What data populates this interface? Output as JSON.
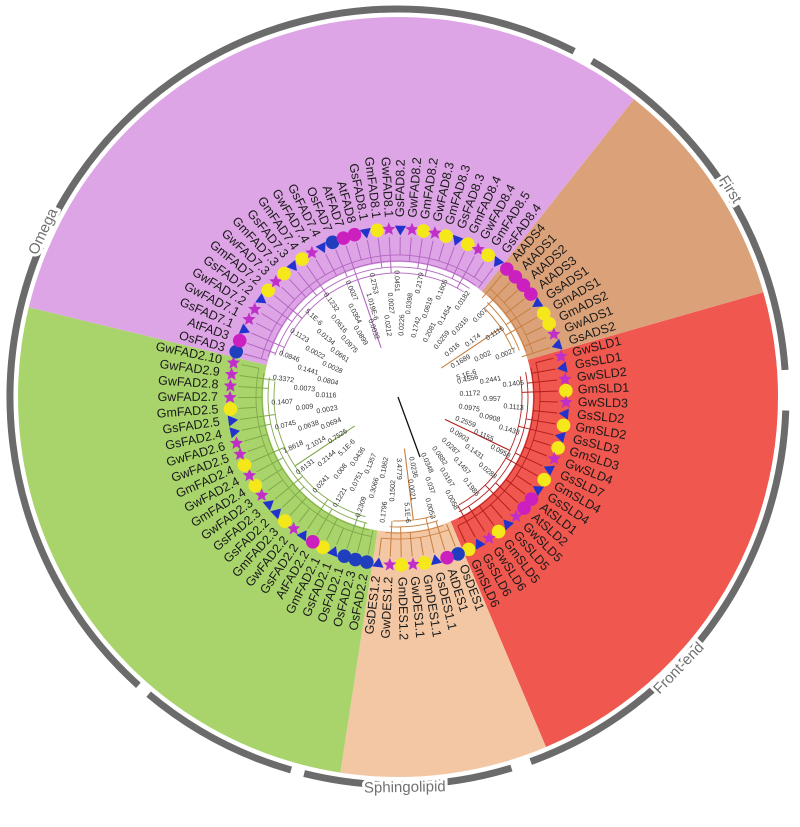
{
  "colors": {
    "outer_ring": "#6b6b6b",
    "marker_circle_magenta": "#cc1fbf",
    "marker_circle_yellow": "#f5e81a",
    "marker_circle_blue": "#1f3fbf",
    "marker_triangle_blue": "#2233cc",
    "marker_star_magenta": "#c030c8",
    "root_stroke": "#111111"
  },
  "clades": [
    {
      "name": "Omega",
      "label": "Omega",
      "color": "#dea5e6",
      "branch": "#b366c2"
    },
    {
      "name": "First",
      "label": "First",
      "color": "#dba27a",
      "branch": "#c77f40"
    },
    {
      "name": "Front-end",
      "label": "Front-end",
      "color": "#f0574e",
      "branch": "#b31f1f"
    },
    {
      "name": "Sphingolipid",
      "label": "Sphingolipid",
      "color": "#f3c7a3",
      "branch": "#c77f40"
    },
    {
      "name": "Delta-12",
      "label": "",
      "color": "#a9d46c",
      "branch": "#7faa4a"
    }
  ],
  "leaves": [
    {
      "label": "GwSLD1",
      "marker": "star",
      "clade": "Front-end"
    },
    {
      "label": "GsSLD1",
      "marker": "triangle",
      "clade": "Front-end"
    },
    {
      "label": "GwSLD2",
      "marker": "star",
      "clade": "Front-end"
    },
    {
      "label": "GmSLD1",
      "marker": "circle-yellow",
      "clade": "Front-end"
    },
    {
      "label": "GwSLD3",
      "marker": "star",
      "clade": "Front-end"
    },
    {
      "label": "GsSLD2",
      "marker": "triangle",
      "clade": "Front-end"
    },
    {
      "label": "GmSLD2",
      "marker": "circle-yellow",
      "clade": "Front-end"
    },
    {
      "label": "GsSLD3",
      "marker": "triangle",
      "clade": "Front-end"
    },
    {
      "label": "GmSLD3",
      "marker": "circle-yellow",
      "clade": "Front-end"
    },
    {
      "label": "GwSLD4",
      "marker": "star",
      "clade": "Front-end"
    },
    {
      "label": "GsSLD7",
      "marker": "triangle",
      "clade": "Front-end"
    },
    {
      "label": "GmSLD4",
      "marker": "circle-yellow",
      "clade": "Front-end"
    },
    {
      "label": "GsSLD4",
      "marker": "triangle",
      "clade": "Front-end"
    },
    {
      "label": "AtSLD1",
      "marker": "circle-magenta",
      "clade": "Front-end"
    },
    {
      "label": "AtSLD2",
      "marker": "circle-magenta",
      "clade": "Front-end"
    },
    {
      "label": "GwSLD5",
      "marker": "star",
      "clade": "Front-end"
    },
    {
      "label": "GsSLD5",
      "marker": "triangle",
      "clade": "Front-end"
    },
    {
      "label": "GmSLD5",
      "marker": "circle-yellow",
      "clade": "Front-end"
    },
    {
      "label": "GwSLD6",
      "marker": "star",
      "clade": "Front-end"
    },
    {
      "label": "GsSLD6",
      "marker": "triangle",
      "clade": "Front-end"
    },
    {
      "label": "GmSLD6",
      "marker": "circle-yellow",
      "clade": "Front-end"
    },
    {
      "label": "OsDES1",
      "marker": "circle-blue",
      "clade": "Sphingolipid"
    },
    {
      "label": "AtDES1",
      "marker": "circle-magenta",
      "clade": "Sphingolipid"
    },
    {
      "label": "GsDES1.1",
      "marker": "triangle",
      "clade": "Sphingolipid"
    },
    {
      "label": "GmDES1.1",
      "marker": "circle-yellow",
      "clade": "Sphingolipid"
    },
    {
      "label": "GwDES1.1",
      "marker": "star",
      "clade": "Sphingolipid"
    },
    {
      "label": "GmDES1.2",
      "marker": "circle-yellow",
      "clade": "Sphingolipid"
    },
    {
      "label": "GwDES1.2",
      "marker": "star",
      "clade": "Sphingolipid"
    },
    {
      "label": "GsDES1.2",
      "marker": "triangle",
      "clade": "Sphingolipid"
    },
    {
      "label": "OsFAD2.2",
      "marker": "circle-blue",
      "clade": "Delta-12"
    },
    {
      "label": "OsFAD2.3",
      "marker": "circle-blue",
      "clade": "Delta-12"
    },
    {
      "label": "OsFAD2.1",
      "marker": "circle-blue",
      "clade": "Delta-12"
    },
    {
      "label": "GsFAD2.1",
      "marker": "triangle",
      "clade": "Delta-12"
    },
    {
      "label": "GmFAD2.1",
      "marker": "circle-yellow",
      "clade": "Delta-12"
    },
    {
      "label": "AtFAD2.2",
      "marker": "circle-magenta",
      "clade": "Delta-12"
    },
    {
      "label": "GsFAD2.2",
      "marker": "triangle",
      "clade": "Delta-12"
    },
    {
      "label": "GwFAD2.2",
      "marker": "star",
      "clade": "Delta-12"
    },
    {
      "label": "GmFAD2.3",
      "marker": "circle-yellow",
      "clade": "Delta-12"
    },
    {
      "label": "GsFAD2.2",
      "marker": "triangle",
      "clade": "Delta-12"
    },
    {
      "label": "GsFAD2.3",
      "marker": "triangle",
      "clade": "Delta-12"
    },
    {
      "label": "GwFAD2.3",
      "marker": "star",
      "clade": "Delta-12"
    },
    {
      "label": "GmFAD2.4",
      "marker": "circle-yellow",
      "clade": "Delta-12"
    },
    {
      "label": "GwFAD2.4",
      "marker": "star",
      "clade": "Delta-12"
    },
    {
      "label": "GmFAD2.4",
      "marker": "circle-yellow",
      "clade": "Delta-12"
    },
    {
      "label": "GwFAD2.5",
      "marker": "star",
      "clade": "Delta-12"
    },
    {
      "label": "GwFAD2.6",
      "marker": "star",
      "clade": "Delta-12"
    },
    {
      "label": "GsFAD2.4",
      "marker": "triangle",
      "clade": "Delta-12"
    },
    {
      "label": "GsFAD2.5",
      "marker": "triangle",
      "clade": "Delta-12"
    },
    {
      "label": "GmFAD2.5",
      "marker": "circle-yellow",
      "clade": "Delta-12"
    },
    {
      "label": "GwFAD2.7",
      "marker": "star",
      "clade": "Delta-12"
    },
    {
      "label": "GwFAD2.8",
      "marker": "star",
      "clade": "Delta-12"
    },
    {
      "label": "GwFAD2.9",
      "marker": "star",
      "clade": "Delta-12"
    },
    {
      "label": "GwFAD2.10",
      "marker": "star",
      "clade": "Delta-12"
    },
    {
      "label": "OsFAD3",
      "marker": "circle-blue",
      "clade": "Omega"
    },
    {
      "label": "AtFAD3",
      "marker": "circle-magenta",
      "clade": "Omega"
    },
    {
      "label": "GsFAD7.1",
      "marker": "triangle",
      "clade": "Omega"
    },
    {
      "label": "GwFAD7.1",
      "marker": "star",
      "clade": "Omega"
    },
    {
      "label": "GwFAD7.2",
      "marker": "star",
      "clade": "Omega"
    },
    {
      "label": "GsFAD7.2",
      "marker": "triangle",
      "clade": "Omega"
    },
    {
      "label": "GmFAD7.2",
      "marker": "circle-yellow",
      "clade": "Omega"
    },
    {
      "label": "GwFAD7.3",
      "marker": "star",
      "clade": "Omega"
    },
    {
      "label": "GmFAD7.3",
      "marker": "circle-yellow",
      "clade": "Omega"
    },
    {
      "label": "GsFAD7.3",
      "marker": "triangle",
      "clade": "Omega"
    },
    {
      "label": "GmFAD7.4",
      "marker": "circle-yellow",
      "clade": "Omega"
    },
    {
      "label": "GwFAD7.4",
      "marker": "star",
      "clade": "Omega"
    },
    {
      "label": "GsFAD7.4",
      "marker": "triangle",
      "clade": "Omega"
    },
    {
      "label": "OsFAD7",
      "marker": "circle-blue",
      "clade": "Omega"
    },
    {
      "label": "AtFAD7",
      "marker": "circle-magenta",
      "clade": "Omega"
    },
    {
      "label": "AtFAD8",
      "marker": "circle-magenta",
      "clade": "Omega"
    },
    {
      "label": "GsFAD8.1",
      "marker": "triangle",
      "clade": "Omega"
    },
    {
      "label": "GmFAD8.1",
      "marker": "circle-yellow",
      "clade": "Omega"
    },
    {
      "label": "GwFAD8.1",
      "marker": "star",
      "clade": "Omega"
    },
    {
      "label": "GsFAD8.2",
      "marker": "triangle",
      "clade": "Omega"
    },
    {
      "label": "GwFAD8.2",
      "marker": "star",
      "clade": "Omega"
    },
    {
      "label": "GmFAD8.2",
      "marker": "circle-yellow",
      "clade": "Omega"
    },
    {
      "label": "GwFAD8.3",
      "marker": "star",
      "clade": "Omega"
    },
    {
      "label": "GmFAD8.3",
      "marker": "circle-yellow",
      "clade": "Omega"
    },
    {
      "label": "GsFAD8.3",
      "marker": "triangle",
      "clade": "Omega"
    },
    {
      "label": "GmFAD8.4",
      "marker": "circle-yellow",
      "clade": "Omega"
    },
    {
      "label": "GwFAD8.4",
      "marker": "star",
      "clade": "Omega"
    },
    {
      "label": "GmFAD8.5",
      "marker": "circle-yellow",
      "clade": "Omega"
    },
    {
      "label": "GsFAD8.4",
      "marker": "triangle",
      "clade": "Omega"
    },
    {
      "label": "AtADS4",
      "marker": "circle-magenta",
      "clade": "First"
    },
    {
      "label": "AtADS1",
      "marker": "circle-magenta",
      "clade": "First"
    },
    {
      "label": "AtADS2",
      "marker": "circle-magenta",
      "clade": "First"
    },
    {
      "label": "AtADS3",
      "marker": "circle-magenta",
      "clade": "First"
    },
    {
      "label": "GsADS1",
      "marker": "triangle",
      "clade": "First"
    },
    {
      "label": "GmADS1",
      "marker": "circle-yellow",
      "clade": "First"
    },
    {
      "label": "GmADS2",
      "marker": "circle-yellow",
      "clade": "First"
    },
    {
      "label": "GwADS1",
      "marker": "star",
      "clade": "First"
    },
    {
      "label": "GsADS2",
      "marker": "triangle",
      "clade": "First"
    }
  ],
  "branch_labels": [
    {
      "text": "0.4556",
      "clade": "Delta-12"
    },
    {
      "text": "0.2441",
      "clade": "Omega"
    },
    {
      "text": "0.1405",
      "clade": "Omega"
    },
    {
      "text": "0.1172",
      "clade": "Omega"
    },
    {
      "text": "0.957",
      "clade": "Omega"
    },
    {
      "text": "0.1113",
      "clade": "Omega"
    },
    {
      "text": "0.0975",
      "clade": "Omega"
    },
    {
      "text": "0.0908",
      "clade": "Omega"
    },
    {
      "text": "0.1433",
      "clade": "Omega"
    },
    {
      "text": "0.2559",
      "clade": "Omega"
    },
    {
      "text": "0.1155",
      "clade": "Omega"
    },
    {
      "text": "0.0958",
      "clade": "Omega"
    },
    {
      "text": "0.0903",
      "clade": "Omega"
    },
    {
      "text": "0.1431",
      "clade": "Omega"
    },
    {
      "text": "0.0288",
      "clade": "Omega"
    },
    {
      "text": "0.0287",
      "clade": "Omega"
    },
    {
      "text": "0.1457",
      "clade": "Omega"
    },
    {
      "text": "0.1986",
      "clade": "Omega"
    },
    {
      "text": "0.0882",
      "clade": "Omega"
    },
    {
      "text": "0.0167",
      "clade": "Omega"
    },
    {
      "text": "0.0058",
      "clade": "Omega"
    },
    {
      "text": "0.0348",
      "clade": "Omega"
    },
    {
      "text": "0.037",
      "clade": "Omega"
    },
    {
      "text": "0.0053",
      "clade": "Omega"
    },
    {
      "text": "0.0236",
      "clade": "Omega"
    },
    {
      "text": "0.0021",
      "clade": "Omega"
    },
    {
      "text": "5.1E-6",
      "clade": "Omega"
    },
    {
      "text": "3.4779",
      "clade": "First"
    },
    {
      "text": "0.1502",
      "clade": "First"
    },
    {
      "text": "0.1796",
      "clade": "First"
    },
    {
      "text": "0.1862",
      "clade": "First"
    },
    {
      "text": "0.3066",
      "clade": "First"
    },
    {
      "text": "0.2309",
      "clade": "First"
    },
    {
      "text": "0.1357",
      "clade": "First"
    },
    {
      "text": "0.0751",
      "clade": "First"
    },
    {
      "text": "0.1221",
      "clade": "First"
    },
    {
      "text": "0.0436",
      "clade": "First"
    },
    {
      "text": "0.008",
      "clade": "First"
    },
    {
      "text": "0.0241",
      "clade": "First"
    },
    {
      "text": "5.1E-6",
      "clade": "First"
    },
    {
      "text": "0.2144",
      "clade": "root"
    },
    {
      "text": "0.6131",
      "clade": "root"
    },
    {
      "text": "0.7526",
      "clade": "Delta-12"
    },
    {
      "text": "2.1014",
      "clade": "Front-end"
    },
    {
      "text": "1.8618",
      "clade": "Sphingolipid"
    },
    {
      "text": "0.0694",
      "clade": "Front-end"
    },
    {
      "text": "0.0638",
      "clade": "Front-end"
    },
    {
      "text": "0.0745",
      "clade": "Front-end"
    },
    {
      "text": "0.0023",
      "clade": "Front-end"
    },
    {
      "text": "0.009",
      "clade": "Front-end"
    },
    {
      "text": "0.1407",
      "clade": "Front-end"
    },
    {
      "text": "0.0116",
      "clade": "Front-end"
    },
    {
      "text": "0.0073",
      "clade": "Front-end"
    },
    {
      "text": "0.3372",
      "clade": "Front-end"
    },
    {
      "text": "0.0804",
      "clade": "Front-end"
    },
    {
      "text": "0.1441",
      "clade": "Front-end"
    },
    {
      "text": "0.0846",
      "clade": "Front-end"
    },
    {
      "text": "0.0028",
      "clade": "Front-end"
    },
    {
      "text": "0.0022",
      "clade": "Front-end"
    },
    {
      "text": "0.1123",
      "clade": "Front-end"
    },
    {
      "text": "0.0661",
      "clade": "Front-end"
    },
    {
      "text": "0.0134",
      "clade": "Front-end"
    },
    {
      "text": "5.1E-6",
      "clade": "Front-end"
    },
    {
      "text": "0.0975",
      "clade": "Sphingolipid"
    },
    {
      "text": "0.0616",
      "clade": "Sphingolipid"
    },
    {
      "text": "0.1232",
      "clade": "Sphingolipid"
    },
    {
      "text": "0.0899",
      "clade": "Sphingolipid"
    },
    {
      "text": "0.0364",
      "clade": "Sphingolipid"
    },
    {
      "text": "0.0027",
      "clade": "Sphingolipid"
    },
    {
      "text": "0.0032",
      "clade": "Sphingolipid"
    },
    {
      "text": "1.019E-6",
      "clade": "Sphingolipid"
    },
    {
      "text": "0.2753",
      "clade": "Delta-12"
    },
    {
      "text": "0.0212",
      "clade": "Delta-12"
    },
    {
      "text": "0.0027",
      "clade": "Delta-12"
    },
    {
      "text": "0.0451",
      "clade": "Delta-12"
    },
    {
      "text": "0.0226",
      "clade": "Delta-12"
    },
    {
      "text": "0.0398",
      "clade": "Delta-12"
    },
    {
      "text": "0.2179",
      "clade": "Delta-12"
    },
    {
      "text": "0.1742",
      "clade": "Delta-12"
    },
    {
      "text": "0.0619",
      "clade": "Delta-12"
    },
    {
      "text": "0.1605",
      "clade": "Delta-12"
    },
    {
      "text": "0.2081",
      "clade": "Delta-12"
    },
    {
      "text": "0.1454",
      "clade": "Delta-12"
    },
    {
      "text": "0.0182",
      "clade": "Delta-12"
    },
    {
      "text": "0.0259",
      "clade": "Delta-12"
    },
    {
      "text": "0.0316",
      "clade": "Delta-12"
    },
    {
      "text": "0.007",
      "clade": "Delta-12"
    },
    {
      "text": "0.016",
      "clade": "Delta-12"
    },
    {
      "text": "0.174",
      "clade": "Delta-12"
    },
    {
      "text": "0.1116",
      "clade": "Delta-12"
    },
    {
      "text": "0.1689",
      "clade": "Delta-12"
    },
    {
      "text": "0.002",
      "clade": "Delta-12"
    },
    {
      "text": "0.0027",
      "clade": "Delta-12"
    },
    {
      "text": "5.1E-6",
      "clade": "Delta-12"
    }
  ]
}
